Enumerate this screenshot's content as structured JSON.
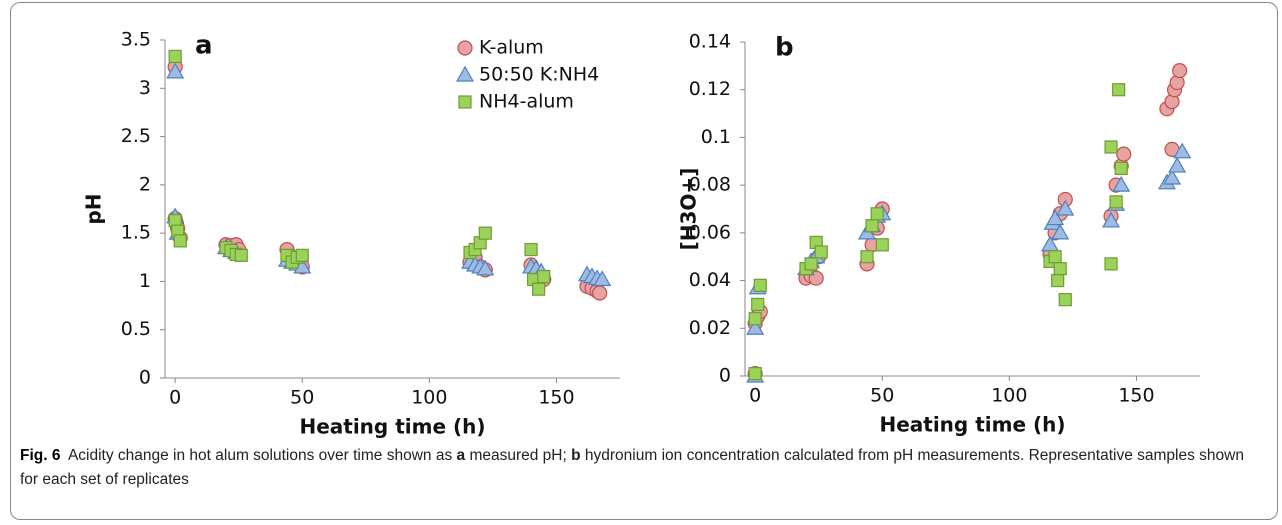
{
  "chart_data": [
    {
      "type": "scatter",
      "panel_label": "a",
      "xlabel": "Heating time (h)",
      "ylabel": "pH",
      "xlim": [
        -4,
        175
      ],
      "xticks": [
        0,
        50,
        100,
        150
      ],
      "ylim": [
        0,
        3.5
      ],
      "yticks": [
        0,
        0.5,
        1,
        1.5,
        2,
        2.5,
        3,
        3.5
      ],
      "legend": "upper right",
      "series": [
        {
          "name": "K-alum",
          "marker": "circle",
          "color": "#e6a3a1",
          "edgecolor": "#c0504d",
          "x": [
            0,
            0,
            0.5,
            1,
            2,
            20,
            22,
            24,
            25,
            44,
            46,
            48,
            50,
            116,
            118,
            120,
            122,
            140,
            142,
            144,
            145,
            162,
            164,
            166,
            167
          ],
          "y": [
            3.22,
            1.65,
            1.6,
            1.55,
            1.45,
            1.38,
            1.37,
            1.38,
            1.33,
            1.33,
            1.25,
            1.2,
            1.15,
            1.2,
            1.25,
            1.15,
            1.12,
            1.17,
            1.1,
            1.05,
            1.02,
            0.95,
            0.93,
            0.9,
            0.88
          ]
        },
        {
          "name": "50:50 K:NH4",
          "marker": "triangle",
          "color": "#9dbbe3",
          "edgecolor": "#4f81bd",
          "x": [
            0,
            0,
            1,
            20,
            22,
            24,
            44,
            46,
            48,
            50,
            116,
            118,
            120,
            122,
            140,
            142,
            144,
            162,
            164,
            166,
            168
          ],
          "y": [
            3.17,
            1.67,
            1.5,
            1.35,
            1.32,
            1.3,
            1.22,
            1.2,
            1.18,
            1.15,
            1.2,
            1.17,
            1.15,
            1.13,
            1.15,
            1.13,
            1.1,
            1.07,
            1.05,
            1.03,
            1.02
          ]
        },
        {
          "name": "NH4-alum",
          "marker": "square",
          "color": "#9bd25a",
          "edgecolor": "#6e9c35",
          "x": [
            0,
            0,
            1,
            2,
            20,
            22,
            24,
            26,
            44,
            46,
            48,
            50,
            116,
            118,
            120,
            122,
            140,
            141,
            143,
            145
          ],
          "y": [
            3.33,
            1.63,
            1.52,
            1.42,
            1.35,
            1.32,
            1.28,
            1.27,
            1.27,
            1.2,
            1.25,
            1.27,
            1.3,
            1.33,
            1.4,
            1.5,
            1.33,
            1.02,
            0.92,
            1.05
          ]
        }
      ]
    },
    {
      "type": "scatter",
      "panel_label": "b",
      "xlabel": "Heating time (h)",
      "ylabel": "[H3O+]",
      "xlim": [
        -4,
        175
      ],
      "xticks": [
        0,
        50,
        100,
        150
      ],
      "ylim": [
        0,
        0.14
      ],
      "yticks": [
        0,
        0.02,
        0.04,
        0.06,
        0.08,
        0.1,
        0.12,
        0.14
      ],
      "series": [
        {
          "name": "K-alum",
          "marker": "circle",
          "color": "#e6a3a1",
          "edgecolor": "#c0504d",
          "x": [
            0,
            0,
            1,
            2,
            20,
            22,
            24,
            25,
            44,
            46,
            48,
            50,
            116,
            118,
            120,
            122,
            140,
            142,
            144,
            145,
            162,
            164,
            165,
            166,
            167,
            164
          ],
          "y": [
            0.001,
            0.022,
            0.025,
            0.027,
            0.041,
            0.042,
            0.041,
            0.05,
            0.047,
            0.055,
            0.062,
            0.07,
            0.051,
            0.06,
            0.068,
            0.074,
            0.067,
            0.08,
            0.088,
            0.093,
            0.112,
            0.115,
            0.12,
            0.123,
            0.128,
            0.095
          ]
        },
        {
          "name": "50:50 K:NH4",
          "marker": "triangle",
          "color": "#9dbbe3",
          "edgecolor": "#4f81bd",
          "x": [
            0,
            0,
            1,
            20,
            22,
            24,
            44,
            46,
            48,
            50,
            116,
            117,
            118,
            120,
            122,
            140,
            142,
            144,
            162,
            164,
            166,
            168
          ],
          "y": [
            0,
            0.02,
            0.037,
            0.045,
            0.048,
            0.05,
            0.06,
            0.063,
            0.067,
            0.068,
            0.055,
            0.064,
            0.066,
            0.06,
            0.07,
            0.065,
            0.072,
            0.08,
            0.081,
            0.083,
            0.088,
            0.094
          ]
        },
        {
          "name": "NH4-alum",
          "marker": "square",
          "color": "#9bd25a",
          "edgecolor": "#6e9c35",
          "x": [
            0,
            0,
            1,
            2,
            20,
            22,
            24,
            26,
            44,
            46,
            48,
            50,
            116,
            118,
            119,
            120,
            122,
            140,
            140,
            142,
            143,
            144
          ],
          "y": [
            0.001,
            0.024,
            0.03,
            0.038,
            0.045,
            0.047,
            0.056,
            0.052,
            0.05,
            0.063,
            0.068,
            0.055,
            0.048,
            0.05,
            0.04,
            0.045,
            0.032,
            0.096,
            0.047,
            0.073,
            0.12,
            0.087
          ]
        }
      ]
    }
  ],
  "caption": {
    "label": "Fig. 6",
    "parts": [
      "Acidity change in hot alum solutions over time shown as",
      "a",
      "measured pH;",
      "b",
      "hydronium ion concentration calculated from pH measurements. Representative samples shown for each set of replicates"
    ]
  }
}
